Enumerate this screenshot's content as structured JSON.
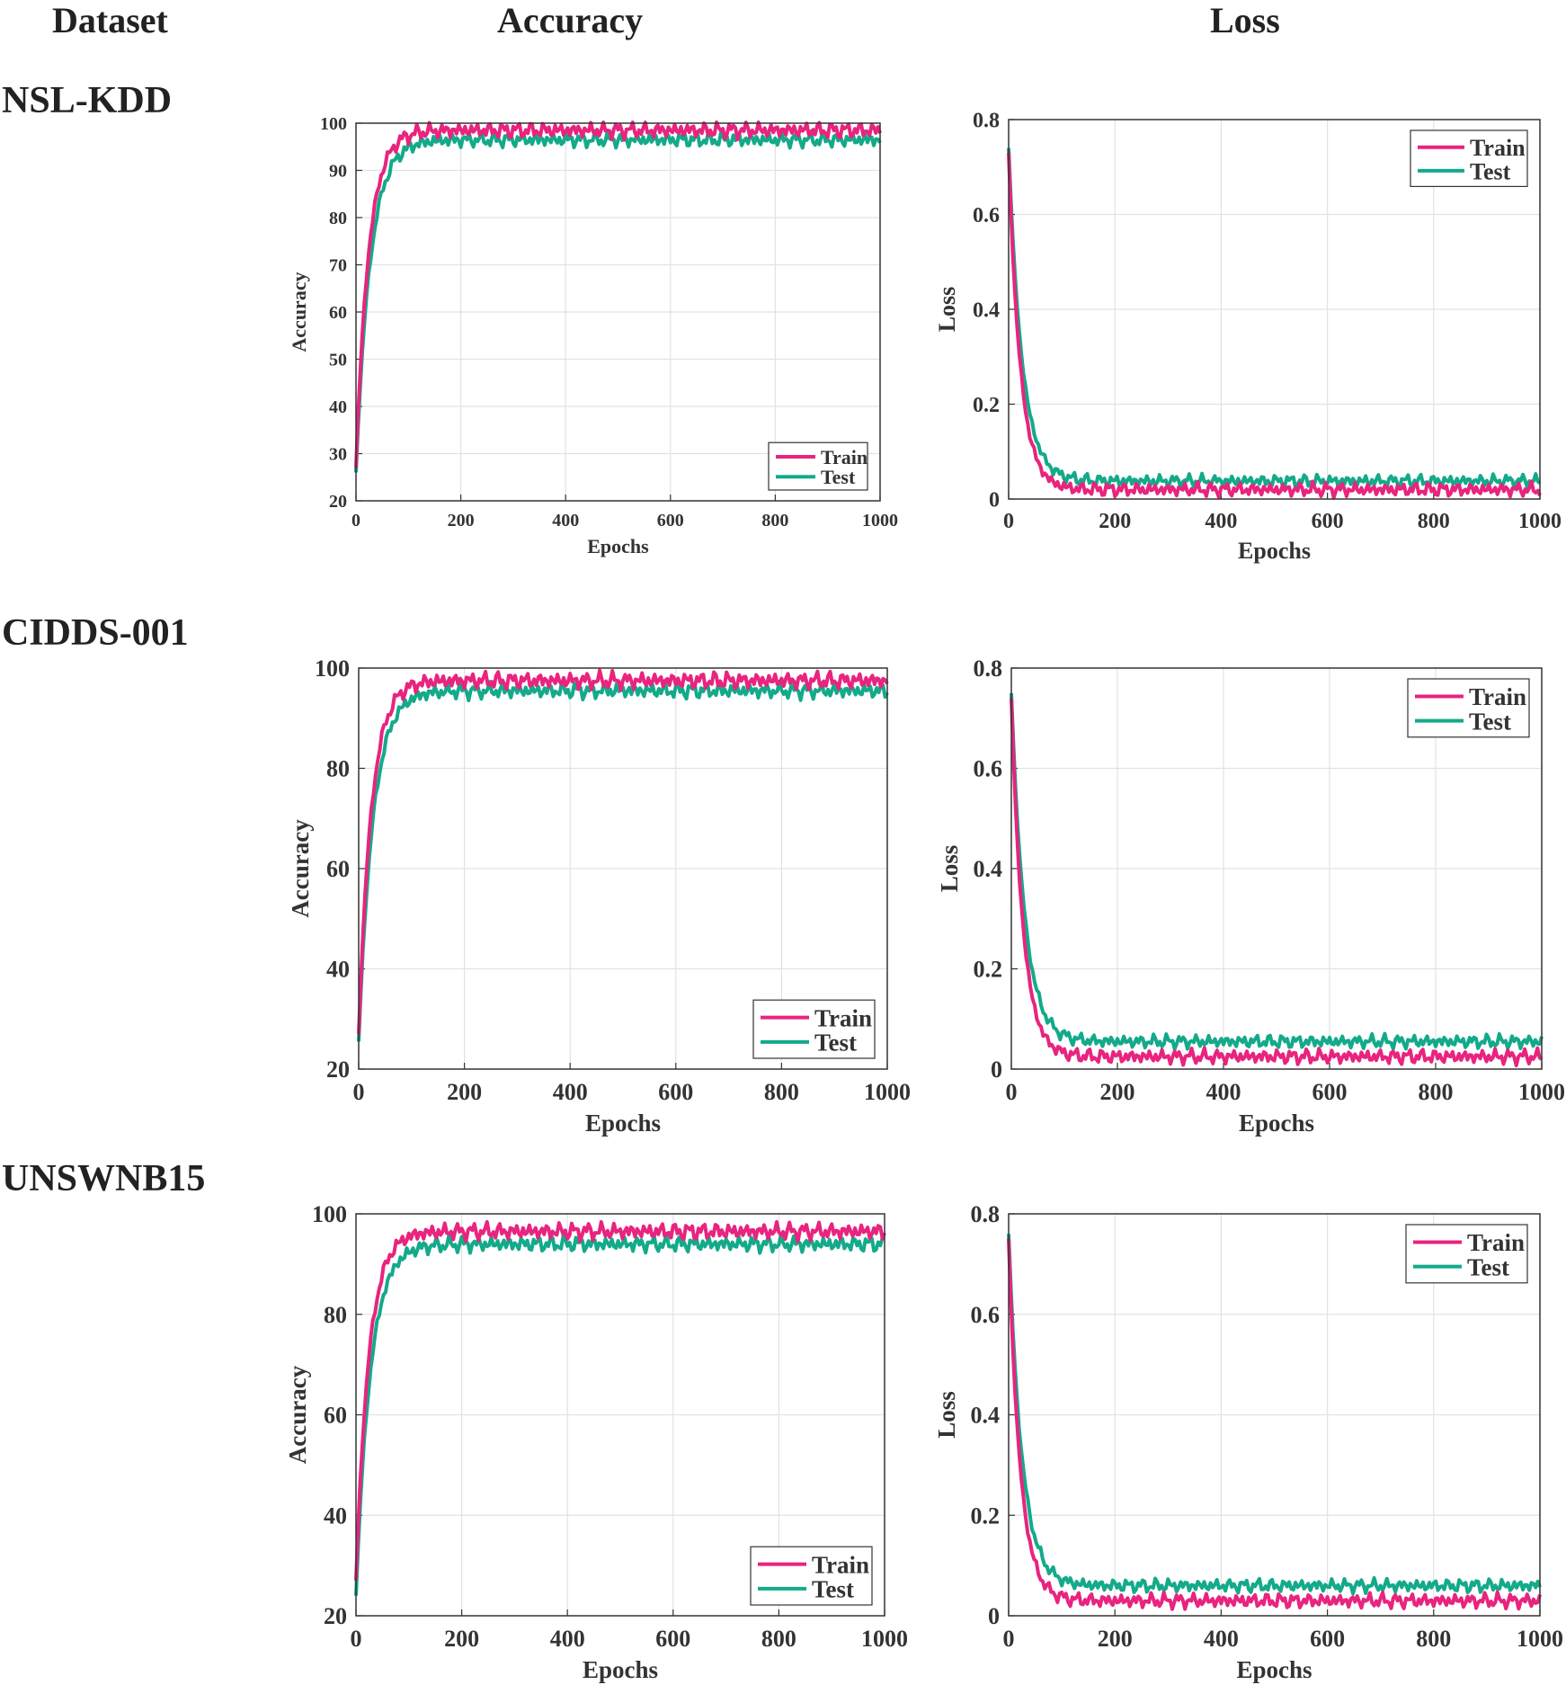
{
  "headers": {
    "dataset": "Dataset",
    "accuracy": "Accuracy",
    "loss": "Loss"
  },
  "colors": {
    "train": "#e8247f",
    "test": "#13aa8a",
    "grid": "#e2e2e2",
    "axis": "#333333"
  },
  "chart_data": [
    {
      "dataset": "NSL-KDD",
      "metric": "accuracy",
      "type": "line",
      "xlabel": "Epochs",
      "ylabel": "Accuracy",
      "xlim": [
        0,
        1000
      ],
      "ylim": [
        20,
        100
      ],
      "xticks": [
        0,
        200,
        400,
        600,
        800,
        1000
      ],
      "yticks": [
        20,
        30,
        40,
        50,
        60,
        70,
        80,
        90,
        100
      ],
      "legend_position": "bottom-right",
      "series": [
        {
          "name": "Train",
          "start": 27,
          "plateau": 98.5,
          "tau": 24,
          "noise": 1.4
        },
        {
          "name": "Test",
          "start": 26,
          "plateau": 96.5,
          "tau": 27,
          "noise": 1.3
        }
      ]
    },
    {
      "dataset": "NSL-KDD",
      "metric": "loss",
      "type": "line",
      "xlabel": "Epochs",
      "ylabel": "Loss",
      "xlim": [
        0,
        1000
      ],
      "ylim": [
        0,
        0.8
      ],
      "xticks": [
        0,
        200,
        400,
        600,
        800,
        1000
      ],
      "yticks": [
        0,
        0.2,
        0.4,
        0.6,
        0.8
      ],
      "legend_position": "top-right",
      "series": [
        {
          "name": "Train",
          "start": 0.73,
          "plateau": 0.02,
          "tau": 22,
          "noise": 0.012
        },
        {
          "name": "Test",
          "start": 0.74,
          "plateau": 0.038,
          "tau": 25,
          "noise": 0.011
        }
      ]
    },
    {
      "dataset": "CIDDS-001",
      "metric": "accuracy",
      "type": "line",
      "xlabel": "Epochs",
      "ylabel": "Accuracy",
      "xlim": [
        0,
        1000
      ],
      "ylim": [
        20,
        100
      ],
      "xticks": [
        0,
        200,
        400,
        600,
        800,
        1000
      ],
      "yticks": [
        20,
        40,
        60,
        80,
        100
      ],
      "legend_position": "bottom-right",
      "series": [
        {
          "name": "Train",
          "start": 27,
          "plateau": 97.5,
          "tau": 24,
          "noise": 1.4
        },
        {
          "name": "Test",
          "start": 25.5,
          "plateau": 95.5,
          "tau": 27,
          "noise": 1.3
        }
      ]
    },
    {
      "dataset": "CIDDS-001",
      "metric": "loss",
      "type": "line",
      "xlabel": "Epochs",
      "ylabel": "Loss",
      "xlim": [
        0,
        1000
      ],
      "ylim": [
        0,
        0.8
      ],
      "xticks": [
        0,
        200,
        400,
        600,
        800,
        1000
      ],
      "yticks": [
        0,
        0.2,
        0.4,
        0.6,
        0.8
      ],
      "legend_position": "top-right",
      "series": [
        {
          "name": "Train",
          "start": 0.74,
          "plateau": 0.025,
          "tau": 22,
          "noise": 0.012
        },
        {
          "name": "Test",
          "start": 0.75,
          "plateau": 0.055,
          "tau": 25,
          "noise": 0.011
        }
      ]
    },
    {
      "dataset": "UNSWNB15",
      "metric": "accuracy",
      "type": "line",
      "xlabel": "Epochs",
      "ylabel": "Accuracy",
      "xlim": [
        0,
        1000
      ],
      "ylim": [
        20,
        100
      ],
      "xticks": [
        0,
        200,
        400,
        600,
        800,
        1000
      ],
      "yticks": [
        20,
        40,
        60,
        80,
        100
      ],
      "legend_position": "bottom-right",
      "series": [
        {
          "name": "Train",
          "start": 27,
          "plateau": 96.5,
          "tau": 24,
          "noise": 1.4
        },
        {
          "name": "Test",
          "start": 24,
          "plateau": 94.0,
          "tau": 27,
          "noise": 1.3
        }
      ]
    },
    {
      "dataset": "UNSWNB15",
      "metric": "loss",
      "type": "line",
      "xlabel": "Epochs",
      "ylabel": "Loss",
      "xlim": [
        0,
        1000
      ],
      "ylim": [
        0,
        0.8
      ],
      "xticks": [
        0,
        200,
        400,
        600,
        800,
        1000
      ],
      "yticks": [
        0,
        0.2,
        0.4,
        0.6,
        0.8
      ],
      "legend_position": "top-right",
      "series": [
        {
          "name": "Train",
          "start": 0.75,
          "plateau": 0.03,
          "tau": 22,
          "noise": 0.012
        },
        {
          "name": "Test",
          "start": 0.76,
          "plateau": 0.06,
          "tau": 25,
          "noise": 0.011
        }
      ]
    }
  ]
}
